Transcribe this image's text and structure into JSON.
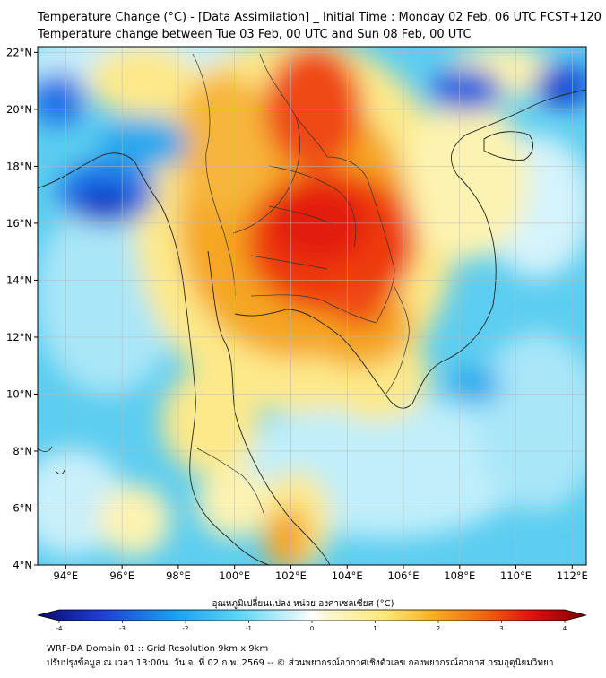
{
  "title": {
    "line1": "Temperature Change (°C) - [Data Assimilation] _ Initial Time : Monday 02 Feb, 06 UTC FCST+120",
    "line2": "Temperature change between Tue 03 Feb, 00 UTC and Sun 08 Feb, 00 UTC"
  },
  "map": {
    "lon_range": [
      93,
      112.5
    ],
    "lat_range": [
      4,
      22.2
    ],
    "lat_ticks": [
      "22°N",
      "20°N",
      "18°N",
      "16°N",
      "14°N",
      "12°N",
      "10°N",
      "8°N",
      "6°N",
      "4°N"
    ],
    "lon_ticks": [
      "94°E",
      "96°E",
      "98°E",
      "100°E",
      "102°E",
      "104°E",
      "106°E",
      "108°E",
      "110°E",
      "112°E"
    ]
  },
  "colorbar": {
    "label": "อุณหภูมิเปลี่ยนแปลง หน่วย องศาเซลเซียส (°C)",
    "ticks": [
      "-4",
      "-3",
      "-2",
      "-1",
      "0",
      "1",
      "2",
      "3",
      "4"
    ],
    "range": [
      -4,
      4
    ]
  },
  "footer": {
    "line1": "WRF-DA Domain 01 :: Grid Resolution 9km x 9km",
    "line2": "ปรับปรุงข้อมูล ณ เวลา 13:00น. วัน จ. ที่ 02 ก.พ. 2569 -- © ส่วนพยากรณ์อากาศเชิงตัวเลข กองพยากรณ์อากาศ กรมอุตุนิยมวิทยา"
  }
}
